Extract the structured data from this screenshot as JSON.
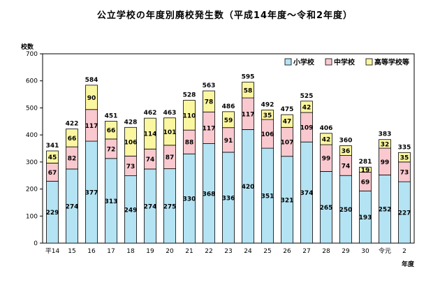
{
  "chart_data": {
    "type": "bar",
    "stacked": true,
    "title": "公立学校の年度別廃校発生数（平成14年度～令和2年度）",
    "ylabel": "校数",
    "xlabel": "年度",
    "ylim": [
      0,
      700
    ],
    "yticks": [
      0,
      100,
      200,
      300,
      400,
      500,
      600,
      700
    ],
    "grid": false,
    "legend_position": "top-right",
    "categories": [
      "平14",
      "15",
      "16",
      "17",
      "18",
      "19",
      "20",
      "21",
      "22",
      "23",
      "24",
      "25",
      "26",
      "27",
      "28",
      "29",
      "30",
      "令元",
      "2"
    ],
    "series": [
      {
        "name": "小学校",
        "color": "#b4e3f3",
        "values": [
          229,
          274,
          377,
          313,
          249,
          274,
          275,
          330,
          368,
          336,
          420,
          351,
          321,
          374,
          265,
          250,
          193,
          252,
          227
        ]
      },
      {
        "name": "中学校",
        "color": "#f9c9cf",
        "values": [
          67,
          82,
          117,
          72,
          73,
          74,
          87,
          88,
          117,
          91,
          117,
          106,
          107,
          109,
          99,
          74,
          69,
          99,
          73
        ]
      },
      {
        "name": "高等学校等",
        "color": "#fbf6a0",
        "values": [
          45,
          66,
          90,
          66,
          106,
          114,
          101,
          110,
          78,
          59,
          58,
          35,
          47,
          42,
          42,
          36,
          19,
          32,
          35
        ]
      }
    ],
    "totals": [
      341,
      422,
      584,
      451,
      428,
      462,
      463,
      528,
      563,
      486,
      595,
      492,
      475,
      525,
      406,
      360,
      281,
      383,
      335
    ]
  }
}
